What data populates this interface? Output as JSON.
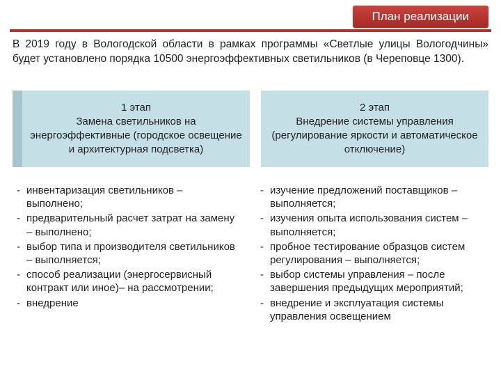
{
  "colors": {
    "accent_red": "#b3322e",
    "hr": "#c12e2a",
    "stage_bg": "#c5dfe6",
    "stage_left_shadow": "#a7c4cc",
    "text": "#222222",
    "white": "#ffffff"
  },
  "fontsize": {
    "title": 17,
    "body": 15
  },
  "title": "План реализации",
  "intro": "В 2019 году в Вологодской области в рамках программы «Светлые улицы Вологодчины» будет установлено порядка 10500 энергоэффективных светильников (в Череповце 1300).",
  "stages": [
    {
      "num": "1 этап",
      "desc": "Замена светильников на энергоэффективные (городское освещение и архитектурная подсветка)",
      "items": [
        "инвентаризация светильников – выполнено;",
        "предварительный расчет затрат на замену – выполнено;",
        "выбор типа и производителя светильников – выполняется;",
        "способ реализации (энергосервисный контракт или иное)– на рассмотрении;",
        "внедрение"
      ]
    },
    {
      "num": "2 этап",
      "desc": "Внедрение системы управления (регулирование яркости и автоматическое отключение)",
      "items": [
        "изучение предложений поставщиков – выполняется;",
        "изучения опыта использования систем – выполняется;",
        "пробное тестирование образцов систем регулирования – выполняется;",
        "выбор системы управления – после завершения предыдущих мероприятий;",
        "внедрение и эксплуатация системы управления освещением"
      ]
    }
  ]
}
